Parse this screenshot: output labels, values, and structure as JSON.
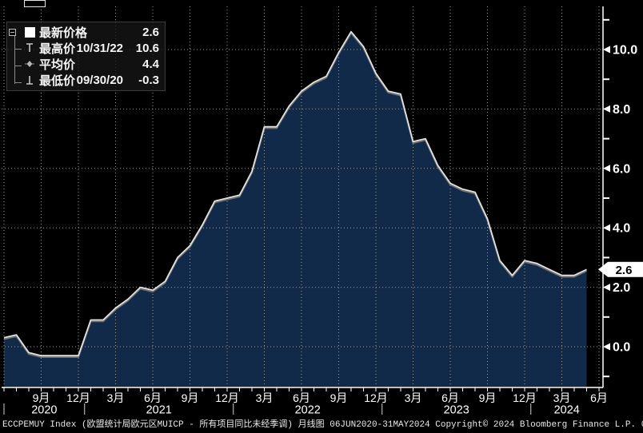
{
  "colors": {
    "background": "#000000",
    "area_fill": "#122a4a",
    "line": "#e2e2e2",
    "line_shadow": "#6f6f6f",
    "grid": "#9a9a9a",
    "axis": "#ffffff",
    "badge_bg": "#ffffff",
    "badge_text": "#000000",
    "legend_marker": "#c8c8c8"
  },
  "legend": {
    "rows": [
      {
        "marker": "square-swatch",
        "label": "最新价格",
        "date": "",
        "value": "2.6"
      },
      {
        "marker": "high-whisker",
        "label": "最高价",
        "date": "10/31/22",
        "value": "10.6"
      },
      {
        "marker": "diamond",
        "label": "平均价",
        "date": "",
        "value": "4.4"
      },
      {
        "marker": "low-whisker",
        "label": "最低价",
        "date": "09/30/20",
        "value": "-0.3"
      }
    ]
  },
  "footer": {
    "text": "ECCPEMUY Index (欧盟统计局欧元区MUICP - 所有项目同比未经季调)  月线图 06JUN2020-31MAY2024 Copyright© 2024 Bloomberg Finance L.P. 06-Jun-2024 12:05:19"
  },
  "chart_data": {
    "type": "area",
    "title": "ECCPEMUY Index (欧盟统计局欧元区MUICP - 所有项目同比未经季调)",
    "period": "月线图 06JUN2020-31MAY2024",
    "series_name": "最新价格",
    "x": [
      "2020-06",
      "2020-07",
      "2020-08",
      "2020-09",
      "2020-10",
      "2020-11",
      "2020-12",
      "2021-01",
      "2021-02",
      "2021-03",
      "2021-04",
      "2021-05",
      "2021-06",
      "2021-07",
      "2021-08",
      "2021-09",
      "2021-10",
      "2021-11",
      "2021-12",
      "2022-01",
      "2022-02",
      "2022-03",
      "2022-04",
      "2022-05",
      "2022-06",
      "2022-07",
      "2022-08",
      "2022-09",
      "2022-10",
      "2022-11",
      "2022-12",
      "2023-01",
      "2023-02",
      "2023-03",
      "2023-04",
      "2023-05",
      "2023-06",
      "2023-07",
      "2023-08",
      "2023-09",
      "2023-10",
      "2023-11",
      "2023-12",
      "2024-01",
      "2024-02",
      "2024-03",
      "2024-04",
      "2024-05"
    ],
    "values": [
      0.3,
      0.4,
      -0.2,
      -0.3,
      -0.3,
      -0.3,
      -0.3,
      0.9,
      0.9,
      1.3,
      1.6,
      2.0,
      1.9,
      2.2,
      3.0,
      3.4,
      4.1,
      4.9,
      5.0,
      5.1,
      5.9,
      7.4,
      7.4,
      8.1,
      8.6,
      8.9,
      9.1,
      9.9,
      10.6,
      10.1,
      9.2,
      8.6,
      8.5,
      6.9,
      7.0,
      6.1,
      5.5,
      5.3,
      5.2,
      4.3,
      2.9,
      2.4,
      2.9,
      2.8,
      2.6,
      2.4,
      2.4,
      2.6
    ],
    "stats": {
      "last": 2.6,
      "high": 10.6,
      "high_date": "10/31/22",
      "average": 4.4,
      "low": -0.3,
      "low_date": "09/30/20"
    },
    "last": {
      "value": 2.6,
      "label": "2.6"
    },
    "ylim": [
      -1.37,
      11.45
    ],
    "grid": true,
    "legend_position": "top-left",
    "y_axis": {
      "major": [
        {
          "v": 10,
          "label": "10.0"
        },
        {
          "v": 8,
          "label": "8.0"
        },
        {
          "v": 6,
          "label": "6.0"
        },
        {
          "v": 4,
          "label": "4.0"
        },
        {
          "v": 2,
          "label": "2.0"
        },
        {
          "v": 0,
          "label": "0.0"
        }
      ],
      "minor": [
        11,
        9,
        7,
        5,
        3,
        1,
        -1
      ]
    },
    "x_axis": {
      "tick_labels": [
        {
          "i": 3,
          "label": "9月"
        },
        {
          "i": 6,
          "label": "12月"
        },
        {
          "i": 9,
          "label": "3月"
        },
        {
          "i": 12,
          "label": "6月"
        },
        {
          "i": 15,
          "label": "9月"
        },
        {
          "i": 18,
          "label": "12月"
        },
        {
          "i": 21,
          "label": "3月"
        },
        {
          "i": 24,
          "label": "6月"
        },
        {
          "i": 27,
          "label": "9月"
        },
        {
          "i": 30,
          "label": "12月"
        },
        {
          "i": 33,
          "label": "3月"
        },
        {
          "i": 36,
          "label": "6月"
        },
        {
          "i": 39,
          "label": "9月"
        },
        {
          "i": 42,
          "label": "12月"
        },
        {
          "i": 45,
          "label": "3月"
        },
        {
          "i": 48,
          "label": "6月"
        }
      ],
      "gridline_is": [
        0,
        3,
        6,
        9,
        12,
        15,
        18,
        21,
        24,
        27,
        30,
        33,
        36,
        39,
        42,
        45,
        48
      ],
      "year_labels": [
        {
          "label": "2020",
          "center_i": 3.25
        },
        {
          "label": "2021",
          "center_i": 12.5
        },
        {
          "label": "2022",
          "center_i": 24.5
        },
        {
          "label": "2023",
          "center_i": 36.5
        },
        {
          "label": "2024",
          "center_i": 45.4
        }
      ],
      "year_separators_i": [
        0,
        6.5,
        18.5,
        30.5,
        42.5
      ]
    }
  }
}
